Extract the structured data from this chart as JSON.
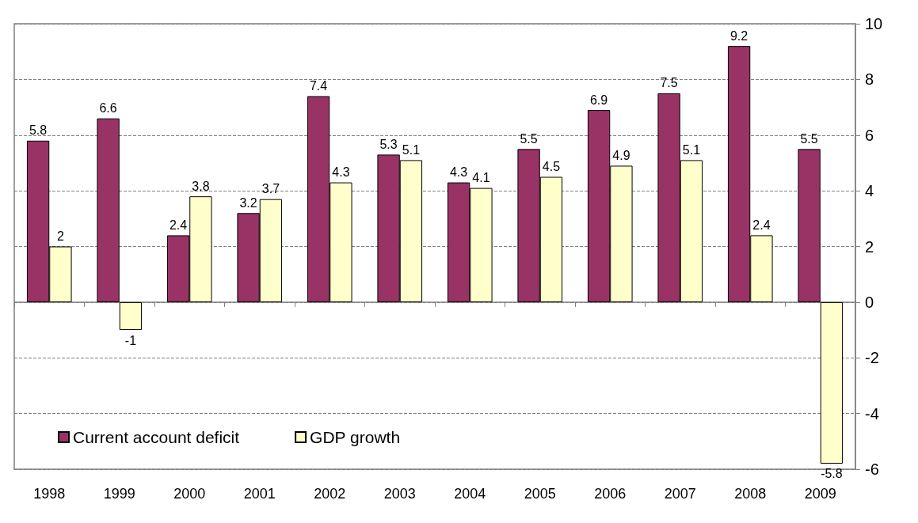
{
  "chart_data": {
    "type": "bar",
    "categories": [
      "1998",
      "1999",
      "2000",
      "2001",
      "2002",
      "2003",
      "2004",
      "2005",
      "2006",
      "2007",
      "2008",
      "2009"
    ],
    "series": [
      {
        "name": "Current account deficit",
        "color": "#993366",
        "values": [
          5.8,
          6.6,
          2.4,
          3.2,
          7.4,
          5.3,
          4.3,
          5.5,
          6.9,
          7.5,
          9.2,
          5.5
        ]
      },
      {
        "name": "GDP growth",
        "color": "#ffffcc",
        "values": [
          2,
          -1,
          3.8,
          3.7,
          4.3,
          5.1,
          4.1,
          4.5,
          4.9,
          5.1,
          2.4,
          -5.8
        ]
      }
    ],
    "ylim": [
      -6,
      10
    ],
    "yticks": [
      -6,
      -4,
      -2,
      0,
      2,
      4,
      6,
      8,
      10
    ],
    "grid": "y",
    "legend": "bottom left",
    "data_labels": true
  }
}
